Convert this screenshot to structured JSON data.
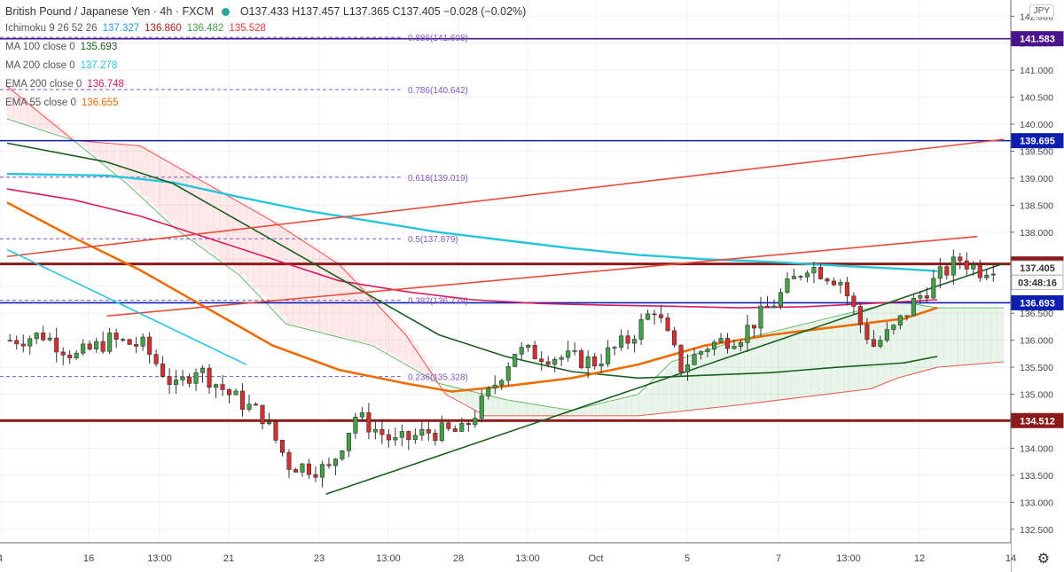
{
  "header": {
    "symbol": "British Pound / Japanese Yen · 4h · FXCM",
    "ohlc": "O137.433 H137.457 L137.365 C137.405 −0.028 (−0.02%)"
  },
  "currency_button": "JPY",
  "legend": [
    {
      "label": "Ichimoku 9 26 52 26",
      "values": [
        "137.327",
        "136.860",
        "136.482",
        "135.528"
      ],
      "colors": [
        "#2196f3",
        "#b71c1c",
        "#43a047",
        "#e53935"
      ]
    },
    {
      "label": "MA 100 close 0",
      "values": [
        "135.693"
      ],
      "colors": [
        "#1b5e20"
      ]
    },
    {
      "label": "MA 200 close 0",
      "values": [
        "137.278"
      ],
      "colors": [
        "#26c6da"
      ]
    },
    {
      "label": "EMA 200 close 0",
      "values": [
        "136.748"
      ],
      "colors": [
        "#d81b60"
      ]
    },
    {
      "label": "EMA 55 close 0",
      "values": [
        "136.655"
      ],
      "colors": [
        "#ef6c00"
      ]
    }
  ],
  "price_badges": [
    {
      "text": "141.583",
      "price": 141.583,
      "color": "#4a148c"
    },
    {
      "text": "139.695",
      "price": 139.695,
      "color": "#0d1fae"
    },
    {
      "text": "137.412",
      "price": 137.412,
      "color": "#8b1a1a"
    },
    {
      "text": "137.405",
      "price": 137.338,
      "color": "#ffffff",
      "text_color": "#333333",
      "border": "#bbbbbb"
    },
    {
      "text": "03:48:16",
      "price": 137.07,
      "color": "#ffffff",
      "text_color": "#333333",
      "border": "#bbbbbb"
    },
    {
      "text": "136.693",
      "price": 136.693,
      "color": "#0d1fae"
    },
    {
      "text": "134.512",
      "price": 134.512,
      "color": "#8b1a1a"
    }
  ],
  "fib_labels": [
    {
      "text": "0.886(141.608)",
      "price": 141.608
    },
    {
      "text": "0.786(140.642)",
      "price": 140.642
    },
    {
      "text": "0.618(139.019)",
      "price": 139.019
    },
    {
      "text": "0.5(137.879)",
      "price": 137.879
    },
    {
      "text": "0.382(136.739)",
      "price": 136.739
    },
    {
      "text": "0.236(135.328)",
      "price": 135.328
    }
  ],
  "chart_data": {
    "type": "candlestick",
    "title": "British Pound / Japanese Yen · 4h · FXCM",
    "ylim": [
      132.25,
      142.3
    ],
    "y_ticks": [
      "132.500",
      "133.000",
      "133.500",
      "134.000",
      "134.500",
      "135.000",
      "135.500",
      "136.000",
      "136.500",
      "137.000",
      "137.500",
      "138.000",
      "138.500",
      "139.000",
      "139.500",
      "140.000",
      "140.500",
      "141.000",
      "141.500",
      "142.000"
    ],
    "x_ticks": [
      "4",
      "16",
      "13:00",
      "21",
      "23",
      "13:00",
      "28",
      "13:00",
      "Oct",
      "5",
      "7",
      "13:00",
      "12",
      "14"
    ],
    "bar_count": 150,
    "horizontal_levels": [
      {
        "price": 141.583,
        "color": "#4a148c"
      },
      {
        "price": 139.695,
        "color": "#0d1fae"
      },
      {
        "price": 137.412,
        "color": "#8b1a1a"
      },
      {
        "price": 136.693,
        "color": "#0d1fae"
      },
      {
        "price": 134.512,
        "color": "#8b1a1a"
      }
    ],
    "trend_lines": [
      {
        "color": "#e74c3c",
        "points": [
          [
            0,
            137.55
          ],
          [
            150,
            139.72
          ]
        ]
      },
      {
        "color": "#e74c3c",
        "points": [
          [
            15,
            136.45
          ],
          [
            146,
            137.92
          ]
        ]
      },
      {
        "color": "#1b5e20",
        "points": [
          [
            48,
            133.15
          ],
          [
            150,
            137.42
          ]
        ]
      },
      {
        "color": "#26c6da",
        "points": [
          [
            0,
            137.68
          ],
          [
            36,
            135.55
          ]
        ]
      }
    ],
    "ma200": [
      [
        0,
        139.08
      ],
      [
        15,
        139.05
      ],
      [
        25,
        138.92
      ],
      [
        35,
        138.65
      ],
      [
        45,
        138.4
      ],
      [
        55,
        138.2
      ],
      [
        65,
        138.0
      ],
      [
        75,
        137.85
      ],
      [
        85,
        137.7
      ],
      [
        95,
        137.58
      ],
      [
        105,
        137.5
      ],
      [
        115,
        137.45
      ],
      [
        125,
        137.38
      ],
      [
        135,
        137.32
      ],
      [
        140,
        137.28
      ]
    ],
    "ema200": [
      [
        0,
        138.8
      ],
      [
        10,
        138.6
      ],
      [
        20,
        138.3
      ],
      [
        30,
        137.9
      ],
      [
        40,
        137.5
      ],
      [
        50,
        137.1
      ],
      [
        60,
        136.9
      ],
      [
        70,
        136.75
      ],
      [
        80,
        136.68
      ],
      [
        90,
        136.65
      ],
      [
        100,
        136.63
      ],
      [
        110,
        136.6
      ],
      [
        120,
        136.62
      ],
      [
        130,
        136.68
      ],
      [
        140,
        136.75
      ]
    ],
    "ema55": [
      [
        0,
        138.55
      ],
      [
        10,
        137.9
      ],
      [
        20,
        137.3
      ],
      [
        30,
        136.6
      ],
      [
        40,
        135.9
      ],
      [
        50,
        135.45
      ],
      [
        60,
        135.2
      ],
      [
        67,
        135.05
      ],
      [
        75,
        135.15
      ],
      [
        85,
        135.3
      ],
      [
        95,
        135.55
      ],
      [
        105,
        135.9
      ],
      [
        115,
        136.1
      ],
      [
        125,
        136.25
      ],
      [
        135,
        136.4
      ],
      [
        140,
        136.6
      ]
    ],
    "ma100": [
      [
        0,
        139.65
      ],
      [
        15,
        139.3
      ],
      [
        25,
        138.9
      ],
      [
        35,
        138.2
      ],
      [
        45,
        137.5
      ],
      [
        55,
        136.8
      ],
      [
        65,
        136.1
      ],
      [
        75,
        135.7
      ],
      [
        85,
        135.42
      ],
      [
        95,
        135.3
      ],
      [
        105,
        135.35
      ],
      [
        115,
        135.4
      ],
      [
        125,
        135.5
      ],
      [
        135,
        135.58
      ],
      [
        140,
        135.7
      ]
    ],
    "kumo_a": [
      [
        0,
        140.1
      ],
      [
        10,
        139.7
      ],
      [
        18,
        138.9
      ],
      [
        25,
        138.1
      ],
      [
        35,
        137.2
      ],
      [
        42,
        136.3
      ],
      [
        55,
        135.9
      ],
      [
        65,
        135.2
      ],
      [
        75,
        134.9
      ],
      [
        85,
        134.7
      ],
      [
        95,
        135.0
      ],
      [
        100,
        135.6
      ],
      [
        110,
        136.0
      ],
      [
        120,
        136.3
      ],
      [
        130,
        136.6
      ],
      [
        134,
        136.72
      ],
      [
        140,
        136.6
      ],
      [
        150,
        136.6
      ]
    ],
    "kumo_b": [
      [
        0,
        140.7
      ],
      [
        10,
        139.7
      ],
      [
        20,
        139.6
      ],
      [
        30,
        138.9
      ],
      [
        40,
        138.2
      ],
      [
        50,
        137.4
      ],
      [
        60,
        136.1
      ],
      [
        66,
        135.0
      ],
      [
        72,
        134.6
      ],
      [
        85,
        134.6
      ],
      [
        95,
        134.6
      ],
      [
        110,
        134.8
      ],
      [
        120,
        134.95
      ],
      [
        130,
        135.1
      ],
      [
        134,
        135.3
      ],
      [
        140,
        135.5
      ],
      [
        150,
        135.6
      ]
    ],
    "candles_ohlc_seed": "generated"
  }
}
